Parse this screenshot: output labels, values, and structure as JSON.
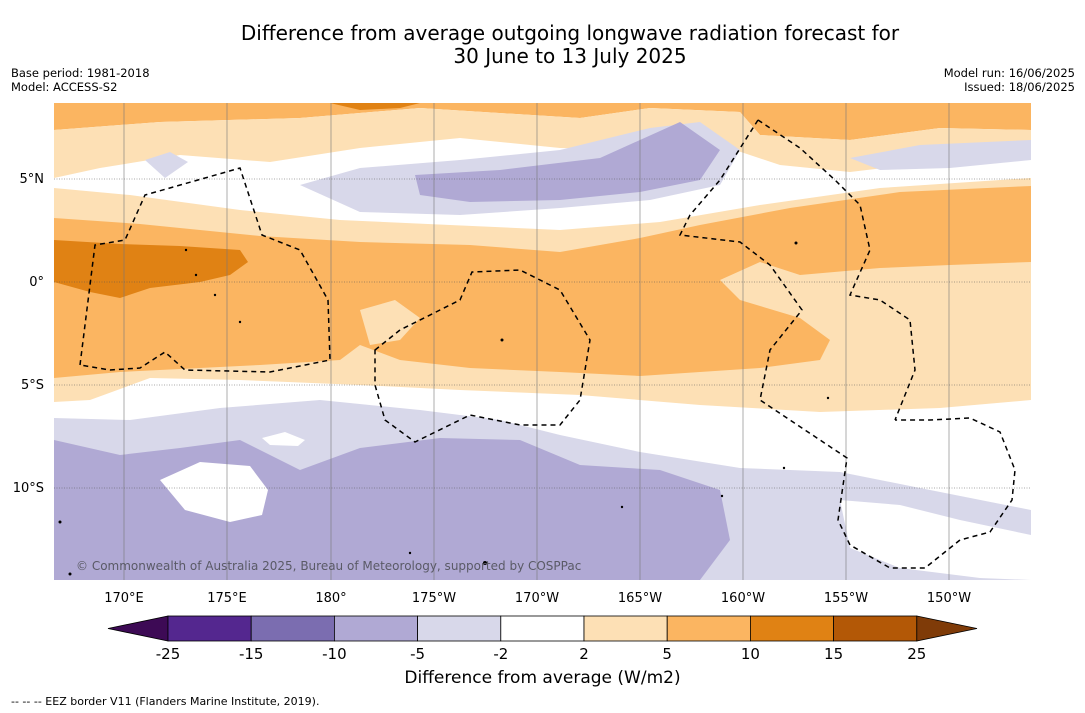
{
  "title": {
    "line1": "Difference from average outgoing longwave radiation forecast for",
    "line2": "30 June to 13 July 2025"
  },
  "meta": {
    "base_period": "Base period: 1981-2018",
    "model": "Model: ACCESS-S2",
    "model_run": "Model run: 16/06/2025",
    "issued": "Issued: 18/06/2025"
  },
  "map": {
    "lat_labels": [
      "5°N",
      "0°",
      "5°S",
      "10°S"
    ],
    "lon_labels": [
      "170°E",
      "175°E",
      "180°",
      "175°W",
      "170°W",
      "165°W",
      "160°W",
      "155°W",
      "150°W"
    ],
    "copyright": "© Commonwealth of Australia 2025, Bureau of Meteorology, supported by COSPPac"
  },
  "colorbar": {
    "tick_labels": [
      "-25",
      "-15",
      "-10",
      "-5",
      "-2",
      "2",
      "5",
      "10",
      "15",
      "25"
    ],
    "colors": [
      "#3d0a55",
      "#54278f",
      "#7b6db0",
      "#b0a9d4",
      "#d8d8ea",
      "#ffffff",
      "#fde0b5",
      "#fbb561",
      "#e08214",
      "#b35806",
      "#7f3b08"
    ],
    "title": "Difference from average (W/m2)"
  },
  "footnote": "--  --  -- EEZ border V11 (Flanders Marine Institute, 2019)."
}
